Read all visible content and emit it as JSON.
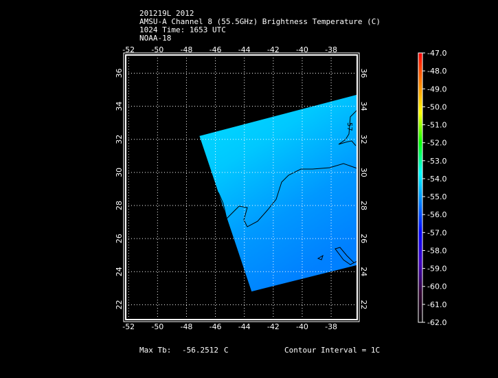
{
  "header": {
    "line1": "201219L 2012",
    "line2": "AMSU-A Channel 8 (55.5GHz) Brightness Temperature (C)",
    "line3": "1024 Time: 1653 UTC",
    "line4": "NOAA-18"
  },
  "footer": {
    "max_label": "Max Tb:",
    "max_value": "-56.2512",
    "max_unit": "C",
    "contour_interval": "Contour Interval = 1C"
  },
  "chart_data": {
    "type": "heatmap",
    "title": "AMSU-A Channel 8 (55.5GHz) Brightness Temperature (C)",
    "x_ticks": [
      "-52",
      "-50",
      "-48",
      "-46",
      "-44",
      "-42",
      "-40",
      "-38"
    ],
    "x_values": [
      -52,
      -50,
      -48,
      -46,
      -44,
      -42,
      -40,
      -38
    ],
    "y_ticks": [
      "22",
      "24",
      "26",
      "28",
      "30",
      "32",
      "34",
      "36"
    ],
    "y_values": [
      22,
      24,
      26,
      28,
      30,
      32,
      34,
      36
    ],
    "xlim": [
      -52.2,
      -36.2
    ],
    "ylim": [
      21.1,
      37.1
    ],
    "grid": true,
    "contour_label": "57",
    "swath_corners_lonlat": [
      [
        -47.1,
        32.2
      ],
      [
        -36.2,
        34.7
      ],
      [
        -36.2,
        24.4
      ],
      [
        -43.5,
        22.8
      ]
    ],
    "colorbar": {
      "ticks": [
        "-47.0",
        "-48.0",
        "-49.0",
        "-50.0",
        "-51.0",
        "-52.0",
        "-53.0",
        "-54.0",
        "-55.0",
        "-56.0",
        "-57.0",
        "-58.0",
        "-59.0",
        "-60.0",
        "-61.0",
        "-62.0"
      ],
      "range": [
        -62,
        -47
      ],
      "placement": "right",
      "colors": [
        "#ff0000",
        "#ff8000",
        "#ffff00",
        "#00ff00",
        "#00ffff",
        "#0080ff",
        "#0000ff",
        "#4000c0",
        "#300030",
        "#000000"
      ]
    }
  }
}
